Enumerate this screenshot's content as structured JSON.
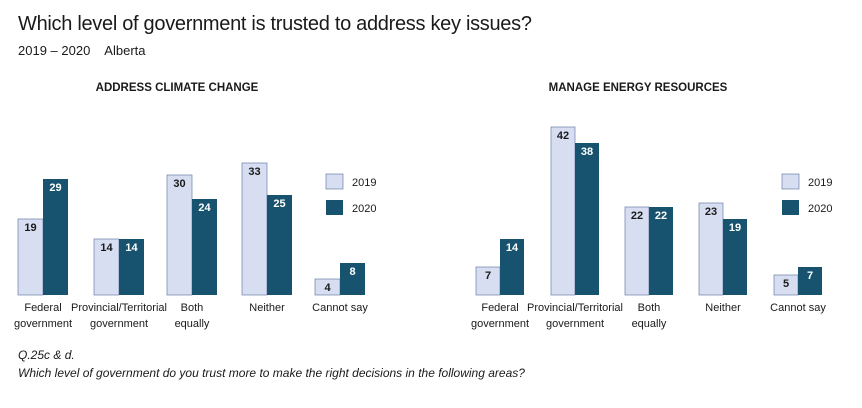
{
  "title": "Which level of government is trusted to address key issues?",
  "subtitle": {
    "years": "2019 – 2020",
    "region": "Alberta"
  },
  "colors": {
    "2019": "#d7def1",
    "2020": "#17536e",
    "outline": "#6b7fa8"
  },
  "footnote": {
    "question": "Q.25c & d.",
    "text": "Which level of government do you trust more to make the right decisions in the following areas?"
  },
  "chart_data": [
    {
      "type": "bar",
      "title": "ADDRESS CLIMATE CHANGE",
      "categories": [
        "Federal government",
        "Provincial/Territorial government",
        "Both equally",
        "Neither",
        "Cannot say"
      ],
      "category_lines": [
        [
          "Federal",
          "government"
        ],
        [
          "Provincial/Territorial",
          "government"
        ],
        [
          "Both",
          "equally"
        ],
        [
          "Neither"
        ],
        [
          "Cannot say"
        ]
      ],
      "series": [
        {
          "name": "2019",
          "values": [
            19,
            14,
            30,
            33,
            4
          ]
        },
        {
          "name": "2020",
          "values": [
            29,
            14,
            24,
            25,
            8
          ]
        }
      ],
      "legend_position": "right",
      "grid": false
    },
    {
      "type": "bar",
      "title": "MANAGE ENERGY RESOURCES",
      "categories": [
        "Federal government",
        "Provincial/Territorial government",
        "Both equally",
        "Neither",
        "Cannot say"
      ],
      "category_lines": [
        [
          "Federal",
          "government"
        ],
        [
          "Provincial/Territorial",
          "government"
        ],
        [
          "Both",
          "equally"
        ],
        [
          "Neither"
        ],
        [
          "Cannot say"
        ]
      ],
      "series": [
        {
          "name": "2019",
          "values": [
            7,
            42,
            22,
            23,
            5
          ]
        },
        {
          "name": "2020",
          "values": [
            14,
            38,
            22,
            19,
            7
          ]
        }
      ],
      "legend_position": "right",
      "grid": false
    }
  ]
}
